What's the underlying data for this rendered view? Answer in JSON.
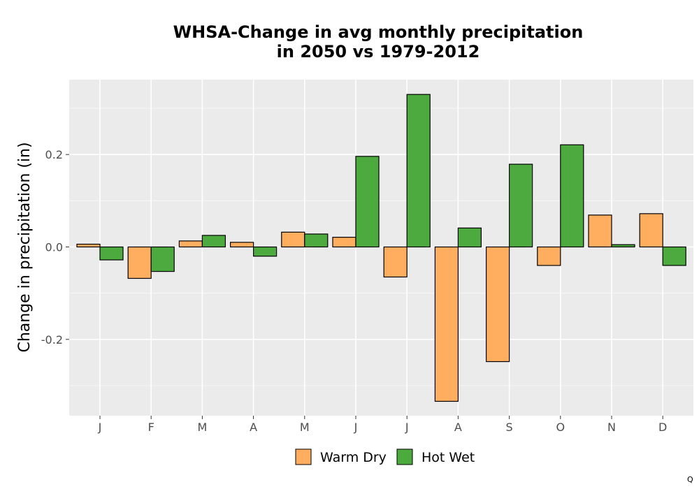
{
  "chart_data": {
    "type": "bar",
    "title_lines": [
      "WHSA-Change in avg monthly precipitation",
      "in 2050 vs 1979-2012"
    ],
    "xlabel": "",
    "ylabel": "Change in precipitation (in)",
    "categories": [
      "J",
      "F",
      "M",
      "A",
      "M",
      "J",
      "J",
      "A",
      "S",
      "O",
      "N",
      "D"
    ],
    "series": [
      {
        "name": "Warm Dry",
        "color": "#FFAD5F",
        "values": [
          0.006,
          -0.068,
          0.013,
          0.01,
          0.032,
          0.021,
          -0.065,
          -0.334,
          -0.248,
          -0.04,
          0.069,
          0.072
        ]
      },
      {
        "name": "Hot Wet",
        "color": "#4DAA3F",
        "values": [
          -0.028,
          -0.053,
          0.025,
          -0.02,
          0.028,
          0.196,
          0.33,
          0.041,
          0.179,
          0.221,
          0.005,
          -0.04
        ]
      }
    ],
    "ylim": [
      -0.365,
      0.362
    ],
    "yticks": [
      -0.2,
      0.0,
      0.2
    ],
    "ytick_labels": [
      "-0.2",
      "0.0",
      "0.2"
    ],
    "grid": true,
    "legend_position": "bottom"
  },
  "corner_mark": "Q"
}
